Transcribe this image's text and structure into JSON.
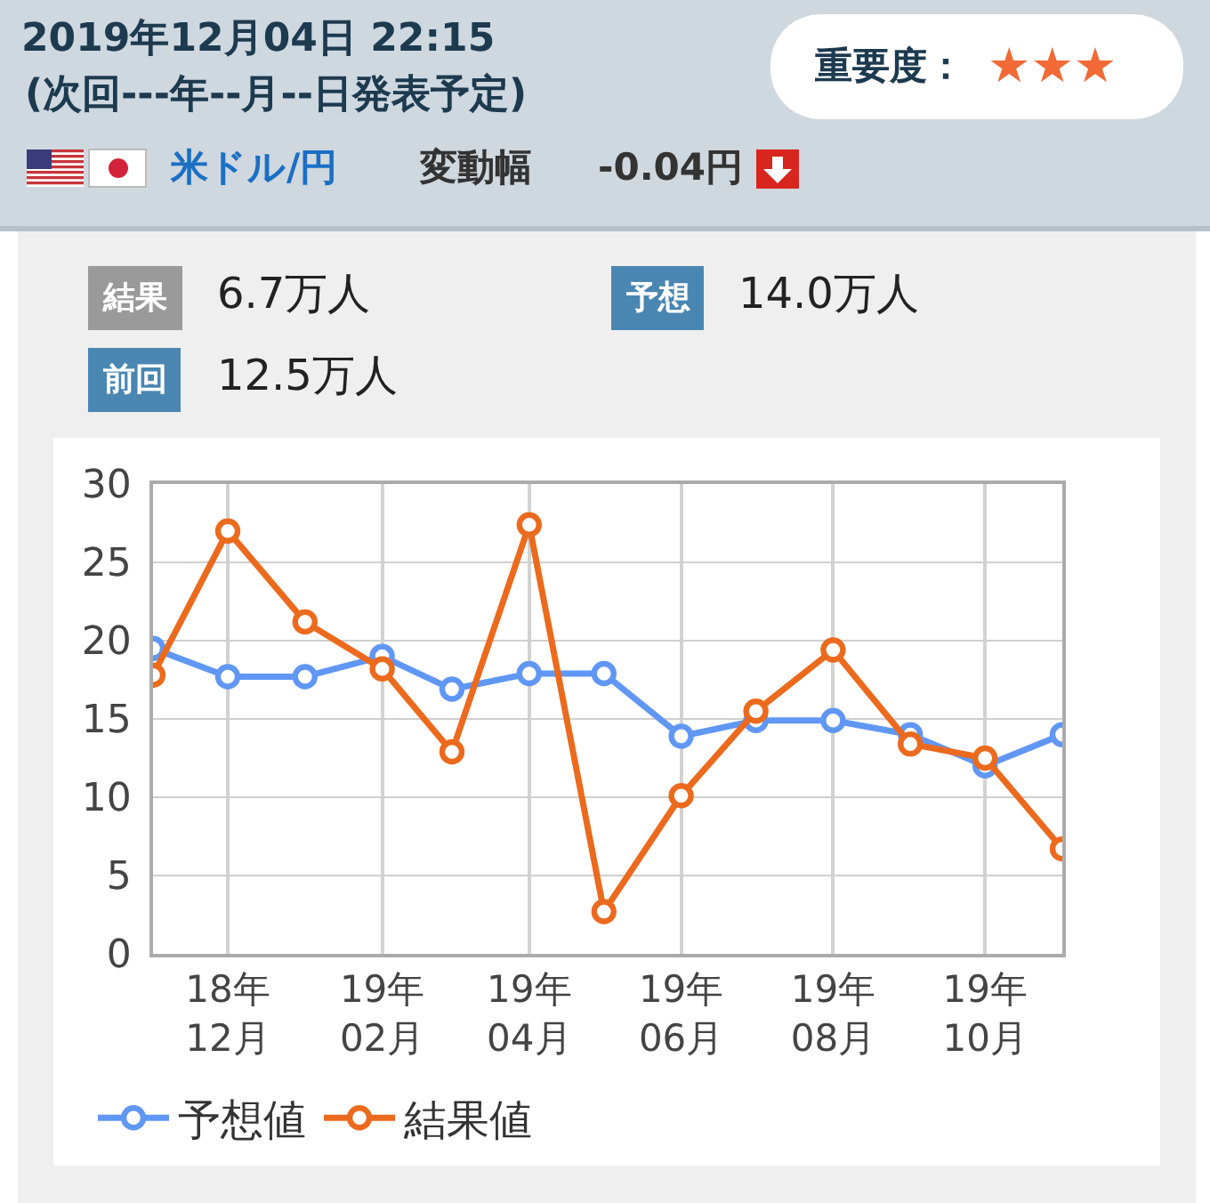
{
  "chart_data": {
    "type": "line",
    "title": "2019年12月04日 22:15",
    "subtitle": "(次回---年--月--日発表予定)",
    "x": [
      "2018-11",
      "2018-12",
      "2019-01",
      "2019-02",
      "2019-03",
      "2019-04",
      "2019-05",
      "2019-06",
      "2019-07",
      "2019-08",
      "2019-09",
      "2019-10",
      "2019-11"
    ],
    "series": [
      {
        "name": "予想値",
        "color": "#6097f5",
        "values": [
          19.5,
          17.7,
          17.7,
          19.0,
          16.9,
          17.9,
          17.9,
          13.9,
          14.9,
          14.9,
          14.0,
          12.0,
          14.0
        ]
      },
      {
        "name": "結果値",
        "color": "#ec6a1d",
        "values": [
          17.8,
          27.0,
          21.2,
          18.2,
          12.9,
          27.4,
          2.7,
          10.1,
          15.5,
          19.4,
          13.4,
          12.5,
          6.7
        ]
      }
    ],
    "xlim": [
      "2018-11",
      "2019-11"
    ],
    "xticks": [
      {
        "value": "2018-12",
        "label": "18年\n12月"
      },
      {
        "value": "2019-02",
        "label": "19年\n02月"
      },
      {
        "value": "2019-04",
        "label": "19年\n04月"
      },
      {
        "value": "2019-06",
        "label": "19年\n06月"
      },
      {
        "value": "2019-08",
        "label": "19年\n08月"
      },
      {
        "value": "2019-10",
        "label": "19年\n10月"
      }
    ],
    "ylim": [
      0,
      30
    ],
    "yticks": [
      0,
      5,
      10,
      15,
      20,
      25,
      30
    ],
    "grid": true,
    "legend": "bottom left",
    "marker": "circle",
    "line_style": "solid",
    "annotations": [
      "米ドル/円",
      "変動幅",
      "-0.04円",
      "重要度：",
      "★★★",
      "結果",
      "6.7万人",
      "予想",
      "14.0万人",
      "前回",
      "12.5万人"
    ]
  }
}
